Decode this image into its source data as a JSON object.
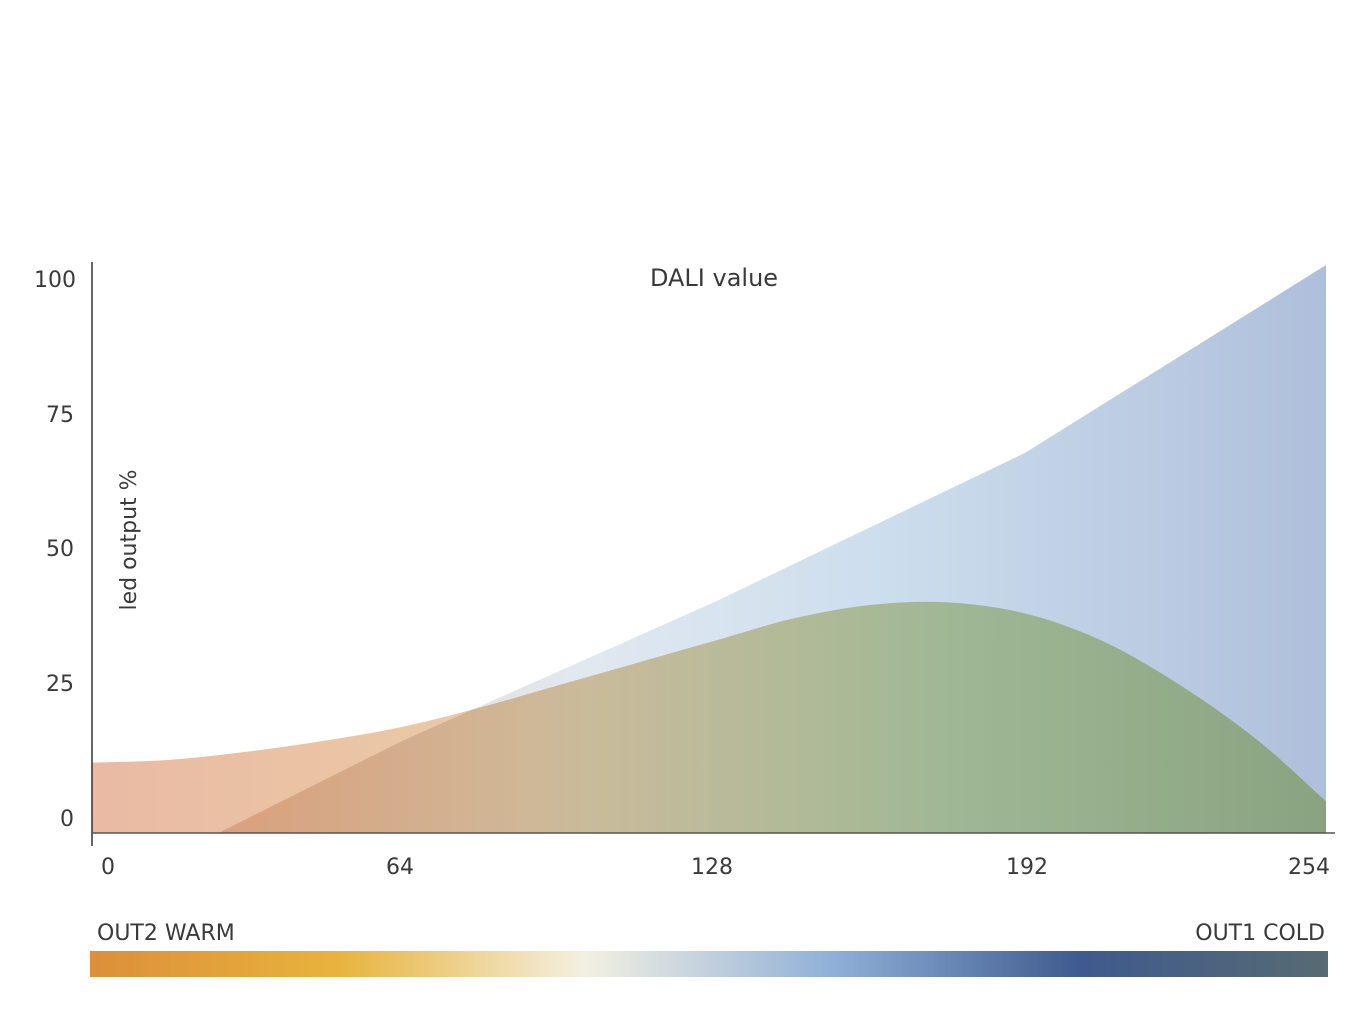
{
  "chart_data": {
    "type": "area",
    "title": "DALI value",
    "ylabel": "led output %",
    "xlabel": "",
    "xlim": [
      0,
      254
    ],
    "ylim": [
      0,
      100
    ],
    "x_ticks": [
      "0",
      "64",
      "128",
      "192",
      "254"
    ],
    "y_ticks": [
      "0",
      "25",
      "50",
      "75",
      "100"
    ],
    "grid": false,
    "series": [
      {
        "x": [
          0,
          16,
          32,
          48,
          64,
          80,
          96,
          112,
          128,
          144,
          160,
          176,
          192,
          208,
          224,
          240,
          254
        ],
        "values": [
          10,
          10.5,
          12,
          14,
          16.5,
          20,
          24,
          28,
          32,
          36,
          38.5,
          39,
          37,
          32,
          24,
          14,
          3
        ],
        "color": "#e8b89a"
      },
      {
        "x": [
          0,
          26,
          64,
          128,
          192,
          254
        ],
        "values": [
          0,
          0,
          14,
          39,
          66,
          100
        ],
        "color": "#a9bfdc"
      }
    ],
    "color_bar": {
      "left_label": "OUT2 WARM",
      "right_label": "OUT1 COLD",
      "colors": [
        "#dc8f3a",
        "#e8b33c",
        "#f3f0e2",
        "#8fb0d8",
        "#3f5a8e",
        "#566b72"
      ]
    }
  }
}
